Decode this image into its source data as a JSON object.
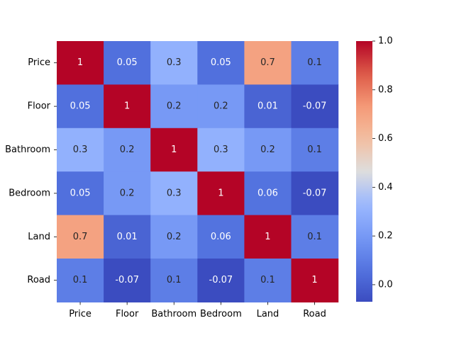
{
  "chart_data": {
    "type": "heatmap",
    "title": "",
    "xlabel": "",
    "ylabel": "",
    "x_categories": [
      "Price",
      "Floor",
      "Bathroom",
      "Bedroom",
      "Land",
      "Road"
    ],
    "y_categories": [
      "Price",
      "Floor",
      "Bathroom",
      "Bedroom",
      "Land",
      "Road"
    ],
    "values": [
      [
        1,
        0.05,
        0.3,
        0.05,
        0.7,
        0.1
      ],
      [
        0.05,
        1,
        0.2,
        0.2,
        0.01,
        -0.07
      ],
      [
        0.3,
        0.2,
        1,
        0.3,
        0.2,
        0.1
      ],
      [
        0.05,
        0.2,
        0.3,
        1,
        0.06,
        -0.07
      ],
      [
        0.7,
        0.01,
        0.2,
        0.06,
        1,
        0.1
      ],
      [
        0.1,
        -0.07,
        0.1,
        -0.07,
        0.1,
        1
      ]
    ],
    "colormap": "coolwarm",
    "vmin": -0.07,
    "vmax": 1.0,
    "colorbar_ticks": [
      0.0,
      0.2,
      0.4,
      0.6,
      0.8,
      1.0
    ],
    "colorbar_tick_labels": [
      "0.0",
      "0.2",
      "0.4",
      "0.6",
      "0.8",
      "1.0"
    ],
    "grid": false,
    "legend": "colorbar-right"
  }
}
